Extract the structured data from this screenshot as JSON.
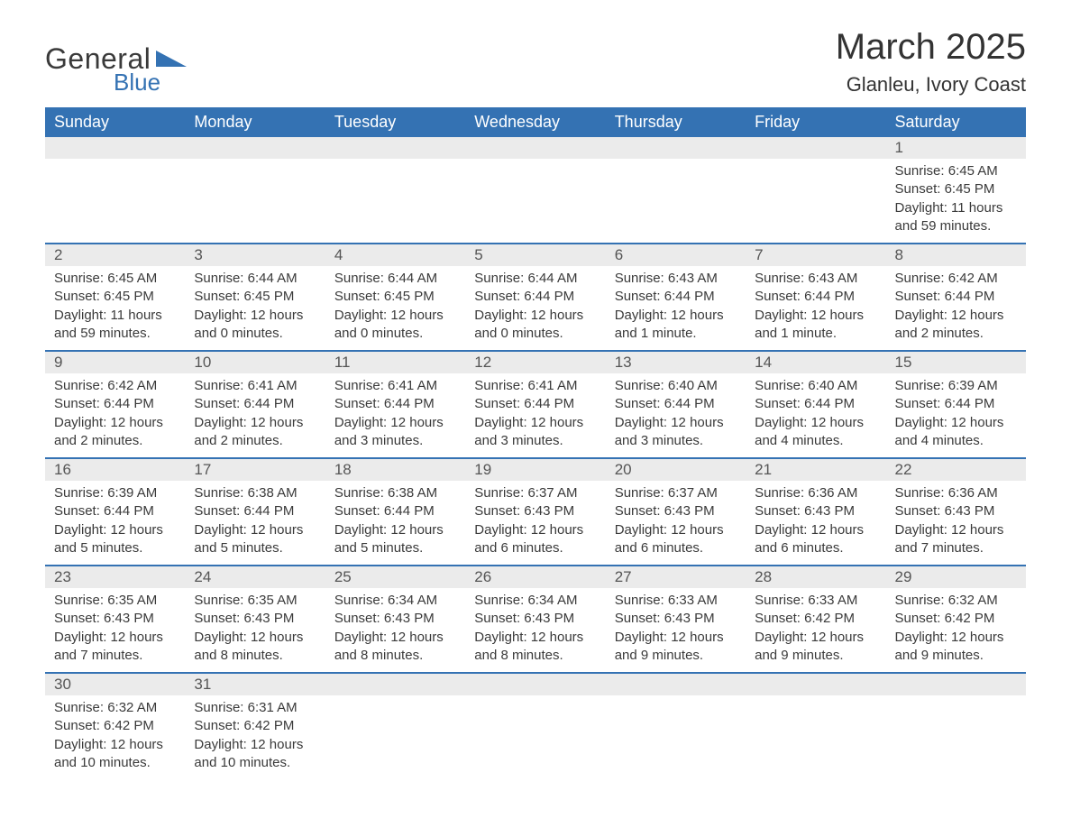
{
  "logo": {
    "general": "General",
    "blue": "Blue",
    "tri_color": "#3472b3"
  },
  "header": {
    "title": "March 2025",
    "subtitle": "Glanleu, Ivory Coast"
  },
  "colors": {
    "header_bg": "#3472b3",
    "header_text": "#ffffff",
    "daynum_bg": "#ebebeb",
    "row_border": "#3472b3",
    "text": "#3a3a3a"
  },
  "weekdays": [
    "Sunday",
    "Monday",
    "Tuesday",
    "Wednesday",
    "Thursday",
    "Friday",
    "Saturday"
  ],
  "weeks": [
    [
      null,
      null,
      null,
      null,
      null,
      null,
      {
        "n": "1",
        "sunrise": "Sunrise: 6:45 AM",
        "sunset": "Sunset: 6:45 PM",
        "daylight": "Daylight: 11 hours and 59 minutes."
      }
    ],
    [
      {
        "n": "2",
        "sunrise": "Sunrise: 6:45 AM",
        "sunset": "Sunset: 6:45 PM",
        "daylight": "Daylight: 11 hours and 59 minutes."
      },
      {
        "n": "3",
        "sunrise": "Sunrise: 6:44 AM",
        "sunset": "Sunset: 6:45 PM",
        "daylight": "Daylight: 12 hours and 0 minutes."
      },
      {
        "n": "4",
        "sunrise": "Sunrise: 6:44 AM",
        "sunset": "Sunset: 6:45 PM",
        "daylight": "Daylight: 12 hours and 0 minutes."
      },
      {
        "n": "5",
        "sunrise": "Sunrise: 6:44 AM",
        "sunset": "Sunset: 6:44 PM",
        "daylight": "Daylight: 12 hours and 0 minutes."
      },
      {
        "n": "6",
        "sunrise": "Sunrise: 6:43 AM",
        "sunset": "Sunset: 6:44 PM",
        "daylight": "Daylight: 12 hours and 1 minute."
      },
      {
        "n": "7",
        "sunrise": "Sunrise: 6:43 AM",
        "sunset": "Sunset: 6:44 PM",
        "daylight": "Daylight: 12 hours and 1 minute."
      },
      {
        "n": "8",
        "sunrise": "Sunrise: 6:42 AM",
        "sunset": "Sunset: 6:44 PM",
        "daylight": "Daylight: 12 hours and 2 minutes."
      }
    ],
    [
      {
        "n": "9",
        "sunrise": "Sunrise: 6:42 AM",
        "sunset": "Sunset: 6:44 PM",
        "daylight": "Daylight: 12 hours and 2 minutes."
      },
      {
        "n": "10",
        "sunrise": "Sunrise: 6:41 AM",
        "sunset": "Sunset: 6:44 PM",
        "daylight": "Daylight: 12 hours and 2 minutes."
      },
      {
        "n": "11",
        "sunrise": "Sunrise: 6:41 AM",
        "sunset": "Sunset: 6:44 PM",
        "daylight": "Daylight: 12 hours and 3 minutes."
      },
      {
        "n": "12",
        "sunrise": "Sunrise: 6:41 AM",
        "sunset": "Sunset: 6:44 PM",
        "daylight": "Daylight: 12 hours and 3 minutes."
      },
      {
        "n": "13",
        "sunrise": "Sunrise: 6:40 AM",
        "sunset": "Sunset: 6:44 PM",
        "daylight": "Daylight: 12 hours and 3 minutes."
      },
      {
        "n": "14",
        "sunrise": "Sunrise: 6:40 AM",
        "sunset": "Sunset: 6:44 PM",
        "daylight": "Daylight: 12 hours and 4 minutes."
      },
      {
        "n": "15",
        "sunrise": "Sunrise: 6:39 AM",
        "sunset": "Sunset: 6:44 PM",
        "daylight": "Daylight: 12 hours and 4 minutes."
      }
    ],
    [
      {
        "n": "16",
        "sunrise": "Sunrise: 6:39 AM",
        "sunset": "Sunset: 6:44 PM",
        "daylight": "Daylight: 12 hours and 5 minutes."
      },
      {
        "n": "17",
        "sunrise": "Sunrise: 6:38 AM",
        "sunset": "Sunset: 6:44 PM",
        "daylight": "Daylight: 12 hours and 5 minutes."
      },
      {
        "n": "18",
        "sunrise": "Sunrise: 6:38 AM",
        "sunset": "Sunset: 6:44 PM",
        "daylight": "Daylight: 12 hours and 5 minutes."
      },
      {
        "n": "19",
        "sunrise": "Sunrise: 6:37 AM",
        "sunset": "Sunset: 6:43 PM",
        "daylight": "Daylight: 12 hours and 6 minutes."
      },
      {
        "n": "20",
        "sunrise": "Sunrise: 6:37 AM",
        "sunset": "Sunset: 6:43 PM",
        "daylight": "Daylight: 12 hours and 6 minutes."
      },
      {
        "n": "21",
        "sunrise": "Sunrise: 6:36 AM",
        "sunset": "Sunset: 6:43 PM",
        "daylight": "Daylight: 12 hours and 6 minutes."
      },
      {
        "n": "22",
        "sunrise": "Sunrise: 6:36 AM",
        "sunset": "Sunset: 6:43 PM",
        "daylight": "Daylight: 12 hours and 7 minutes."
      }
    ],
    [
      {
        "n": "23",
        "sunrise": "Sunrise: 6:35 AM",
        "sunset": "Sunset: 6:43 PM",
        "daylight": "Daylight: 12 hours and 7 minutes."
      },
      {
        "n": "24",
        "sunrise": "Sunrise: 6:35 AM",
        "sunset": "Sunset: 6:43 PM",
        "daylight": "Daylight: 12 hours and 8 minutes."
      },
      {
        "n": "25",
        "sunrise": "Sunrise: 6:34 AM",
        "sunset": "Sunset: 6:43 PM",
        "daylight": "Daylight: 12 hours and 8 minutes."
      },
      {
        "n": "26",
        "sunrise": "Sunrise: 6:34 AM",
        "sunset": "Sunset: 6:43 PM",
        "daylight": "Daylight: 12 hours and 8 minutes."
      },
      {
        "n": "27",
        "sunrise": "Sunrise: 6:33 AM",
        "sunset": "Sunset: 6:43 PM",
        "daylight": "Daylight: 12 hours and 9 minutes."
      },
      {
        "n": "28",
        "sunrise": "Sunrise: 6:33 AM",
        "sunset": "Sunset: 6:42 PM",
        "daylight": "Daylight: 12 hours and 9 minutes."
      },
      {
        "n": "29",
        "sunrise": "Sunrise: 6:32 AM",
        "sunset": "Sunset: 6:42 PM",
        "daylight": "Daylight: 12 hours and 9 minutes."
      }
    ],
    [
      {
        "n": "30",
        "sunrise": "Sunrise: 6:32 AM",
        "sunset": "Sunset: 6:42 PM",
        "daylight": "Daylight: 12 hours and 10 minutes."
      },
      {
        "n": "31",
        "sunrise": "Sunrise: 6:31 AM",
        "sunset": "Sunset: 6:42 PM",
        "daylight": "Daylight: 12 hours and 10 minutes."
      },
      null,
      null,
      null,
      null,
      null
    ]
  ]
}
